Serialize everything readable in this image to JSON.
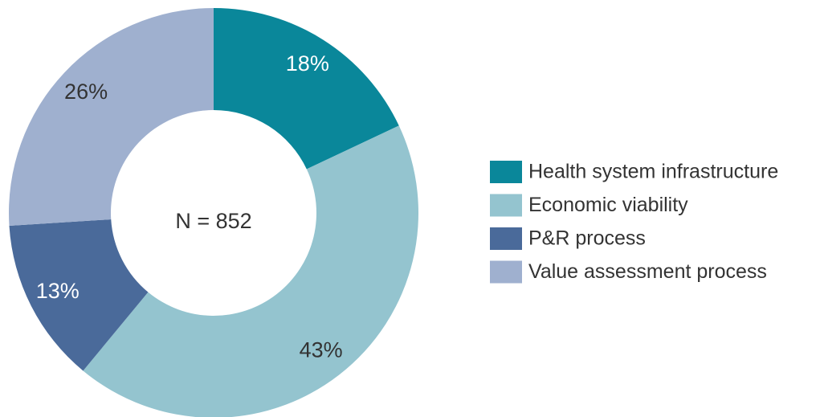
{
  "chart_data": {
    "type": "donut",
    "categories": [
      "Health system infrastructure",
      "Economic viability",
      "P&R process",
      "Value assessment process"
    ],
    "values": [
      18,
      43,
      13,
      26
    ],
    "value_labels": [
      "18%",
      "43%",
      "13%",
      "26%"
    ],
    "colors": [
      "#0a879a",
      "#94c4cf",
      "#4a6a9a",
      "#9fb0cf"
    ],
    "annotation": "N = 852",
    "legend": "right"
  }
}
